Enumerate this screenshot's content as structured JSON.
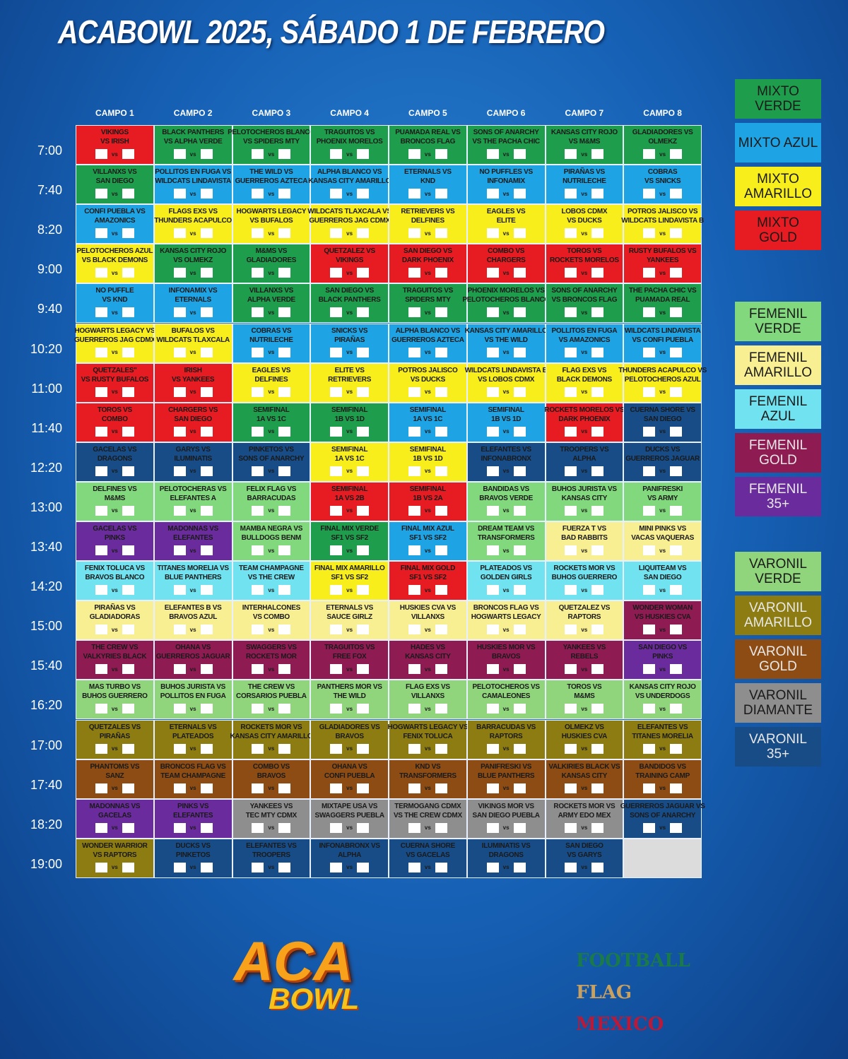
{
  "title": "ACABOWL 2025, SÁBADO 1 DE FEBRERO",
  "vs_label": "vs",
  "columns": [
    "CAMPO 1",
    "CAMPO 2",
    "CAMPO 3",
    "CAMPO 4",
    "CAMPO 5",
    "CAMPO 6",
    "CAMPO 7",
    "CAMPO 8"
  ],
  "legend": [
    {
      "label": "MIXTO VERDE",
      "color": "#1e9e4c"
    },
    {
      "label": "MIXTO AZUL",
      "color": "#1ea4e4"
    },
    {
      "label": "MIXTO AMARILLO",
      "color": "#f8ee1c"
    },
    {
      "label": "MIXTO GOLD",
      "color": "#e61c22"
    },
    {
      "label": "FEMENIL VERDE",
      "color": "#82d87c"
    },
    {
      "label": "FEMENIL AMARILLO",
      "color": "#f8ee92"
    },
    {
      "label": "FEMENIL AZUL",
      "color": "#70e2f0"
    },
    {
      "label": "FEMENIL GOLD",
      "color": "#8e1c52"
    },
    {
      "label": "FEMENIL 35+",
      "color": "#6a2c9c"
    },
    {
      "label": "VARONIL VERDE",
      "color": "#90d47c"
    },
    {
      "label": "VARONIL AMARILLO",
      "color": "#8c7c12"
    },
    {
      "label": "VARONIL GOLD",
      "color": "#8c4c14"
    },
    {
      "label": "VARONIL DIAMANTE",
      "color": "#8e8e8e"
    },
    {
      "label": "VARONIL 35+",
      "color": "#184c86"
    }
  ],
  "rows": [
    {
      "time": "7:00",
      "cells": [
        [
          "VIKINGS",
          "VS IRISH",
          3
        ],
        [
          "BLACK PANTHERS",
          "VS ALPHA VERDE",
          0
        ],
        [
          "PELOTOCHEROS BLANCO",
          "VS SPIDERS MTY",
          0
        ],
        [
          "TRAGUITOS VS",
          "PHOENIX MORELOS",
          0
        ],
        [
          "PUAMADA REAL VS",
          "BRONCOS FLAG",
          0
        ],
        [
          "SONS OF ANARCHY",
          "VS THE PACHA CHIC",
          0
        ],
        [
          "KANSAS CITY ROJO",
          "VS M&MS",
          0
        ],
        [
          "GLADIADORES VS",
          "OLMEKZ",
          0
        ]
      ]
    },
    {
      "time": "7:40",
      "cells": [
        [
          "VILLANXS VS",
          "SAN DIEGO",
          0
        ],
        [
          "POLLITOS EN FUGA VS",
          "WILDCATS LINDAVISTA",
          1
        ],
        [
          "THE WILD VS",
          "GUERREROS AZTECA",
          1
        ],
        [
          "ALPHA BLANCO VS",
          "KANSAS CITY AMARILLO",
          1
        ],
        [
          "ETERNALS VS",
          "KND",
          1
        ],
        [
          "NO PUFFLES VS",
          "INFONAMIX",
          1
        ],
        [
          "PIRAÑAS VS",
          "NUTRILECHE",
          1
        ],
        [
          "COBRAS",
          "VS SNICKS",
          1
        ]
      ]
    },
    {
      "time": "8:20",
      "cells": [
        [
          "CONFI PUEBLA VS",
          "AMAZONICS",
          1
        ],
        [
          "FLAGS EXS VS",
          "THUNDERS ACAPULCO",
          2
        ],
        [
          "HOGWARTS LEGACY",
          "VS BUFALOS",
          2
        ],
        [
          "WILDCATS TLAXCALA VS",
          "GUERREROS JAG CDMX",
          2
        ],
        [
          "RETRIEVERS VS",
          "DELFINES",
          2
        ],
        [
          "EAGLES VS",
          "ELITE",
          2
        ],
        [
          "LOBOS CDMX",
          "VS DUCKS",
          2
        ],
        [
          "POTROS JALISCO VS",
          "WILDCATS LINDAVISTA B",
          2
        ]
      ]
    },
    {
      "time": "9:00",
      "cells": [
        [
          "PELOTOCHEROS AZUL",
          "VS BLACK DEMONS",
          2
        ],
        [
          "KANSAS CITY ROJO",
          "VS OLMEKZ",
          0
        ],
        [
          "M&MS VS",
          "GLADIADORES",
          0
        ],
        [
          "QUETZALEZ VS",
          "VIKINGS",
          3
        ],
        [
          "SAN DIEGO VS",
          "DARK PHOENIX",
          3
        ],
        [
          "COMBO VS",
          "CHARGERS",
          3
        ],
        [
          "TOROS VS",
          "ROCKETS MORELOS",
          3
        ],
        [
          "RUSTY BUFALOS VS",
          "YANKEES",
          3
        ]
      ]
    },
    {
      "time": "9:40",
      "cells": [
        [
          "NO PUFFLE",
          "VS KND",
          1
        ],
        [
          "INFONAMIX VS",
          "ETERNALS",
          1
        ],
        [
          "VILLANXS VS",
          "ALPHA VERDE",
          0
        ],
        [
          "SAN DIEGO VS",
          "BLACK PANTHERS",
          0
        ],
        [
          "TRAGUITOS VS",
          "SPIDERS MTY",
          0
        ],
        [
          "PHOENIX MORELOS VS",
          "PELOTOCHEROS BLANCO",
          0
        ],
        [
          "SONS OF ANARCHY",
          "VS BRONCOS FLAG",
          0
        ],
        [
          "THE PACHA CHIC VS",
          "PUAMADA REAL",
          0
        ]
      ]
    },
    {
      "time": "10:20",
      "cells": [
        [
          "HOGWARTS LEGACY VS",
          "GUERREROS JAG CDMX",
          2
        ],
        [
          "BUFALOS VS",
          "WILDCATS TLAXCALA",
          2
        ],
        [
          "COBRAS VS",
          "NUTRILECHE",
          1
        ],
        [
          "SNICKS VS",
          "PIRAÑAS",
          1
        ],
        [
          "ALPHA BLANCO VS",
          "GUERREROS AZTECA",
          1
        ],
        [
          "KANSAS CITY AMARILLO",
          "VS THE WILD",
          1
        ],
        [
          "POLLITOS EN FUGA",
          "VS AMAZONICS",
          1
        ],
        [
          "WILDCATS LINDAVISTA",
          "VS CONFI PUEBLA",
          1
        ]
      ]
    },
    {
      "time": "11:00",
      "cells": [
        [
          "QUETZALES''",
          "VS RUSTY BUFALOS",
          3
        ],
        [
          "IRISH",
          "VS YANKEES",
          3
        ],
        [
          "EAGLES VS",
          "DELFINES",
          2
        ],
        [
          "ELITE VS",
          "RETRIEVERS",
          2
        ],
        [
          "POTROS JALISCO",
          "VS DUCKS",
          2
        ],
        [
          "WILDCATS LINDAVISTA B",
          "VS LOBOS CDMX",
          2
        ],
        [
          "FLAG EXS VS",
          "BLACK DEMONS",
          2
        ],
        [
          "THUNDERS ACAPULCO VS",
          "PELOTOCHEROS AZUL",
          2
        ]
      ]
    },
    {
      "time": "11:40",
      "cells": [
        [
          "TOROS VS",
          "COMBO",
          3
        ],
        [
          "CHARGERS VS",
          "SAN DIEGO",
          3
        ],
        [
          "SEMIFINAL",
          "1A VS 1C",
          0
        ],
        [
          "SEMIFINAL",
          "1B VS 1D",
          0
        ],
        [
          "SEMIFINAL",
          "1A VS 1C",
          1
        ],
        [
          "SEMIFINAL",
          "1B VS 1D",
          1
        ],
        [
          "ROCKETS MORELOS VS",
          "DARK PHOENIX",
          3
        ],
        [
          "CUERNA SHORE VS",
          "SAN DIEGO",
          13
        ]
      ]
    },
    {
      "time": "12:20",
      "cells": [
        [
          "GACELAS VS",
          "DRAGONS",
          13
        ],
        [
          "GARYS VS",
          "ILUMINATIS",
          13
        ],
        [
          "PINKETOS VS",
          "SONS OF ANARCHY",
          13
        ],
        [
          "SEMIFINAL",
          "1A VS 1C",
          2
        ],
        [
          "SEMIFINAL",
          "1B VS 1D",
          2
        ],
        [
          "ELEFANTES VS",
          "INFONABRONX",
          13
        ],
        [
          "TROOPERS VS",
          "ALPHA",
          13
        ],
        [
          "DUCKS VS",
          "GUERREROS JAGUAR",
          13
        ]
      ]
    },
    {
      "time": "13:00",
      "cells": [
        [
          "DELFINES VS",
          "M&MS",
          4
        ],
        [
          "PELOTOCHERAS VS",
          "ELEFANTES A",
          4
        ],
        [
          "FELIX FLAG VS",
          "BARRACUDAS",
          4
        ],
        [
          "SEMIFINAL",
          "1A VS 2B",
          3
        ],
        [
          "SEMIFINAL",
          "1B VS 2A",
          3
        ],
        [
          "BANDIDAS VS",
          "BRAVOS VERDE",
          4
        ],
        [
          "BUHOS JURISTA VS",
          "KANSAS CITY",
          4
        ],
        [
          "PANIFRESKI",
          "VS ARMY",
          4
        ]
      ]
    },
    {
      "time": "13:40",
      "cells": [
        [
          "GACELAS VS",
          "PINKS",
          8
        ],
        [
          "MADONNAS VS",
          "ELEFANTES",
          8
        ],
        [
          "MAMBA NEGRA VS",
          "BULLDOGS BENM",
          4
        ],
        [
          "FINAL MIX VERDE",
          "SF1 VS SF2",
          0
        ],
        [
          "FINAL MIX AZUL",
          "SF1 VS SF2",
          1
        ],
        [
          "DREAM TEAM VS",
          "TRANSFORMERS",
          4
        ],
        [
          "FUERZA T VS",
          "BAD RABBITS",
          5
        ],
        [
          "MINI PINKS VS",
          "VACAS VAQUERAS",
          5
        ]
      ]
    },
    {
      "time": "14:20",
      "cells": [
        [
          "FENIX TOLUCA VS",
          "BRAVOS BLANCO",
          6
        ],
        [
          "TITANES MORELIA VS",
          "BLUE PANTHERS",
          6
        ],
        [
          "TEAM CHAMPAGNE",
          "VS THE CREW",
          6
        ],
        [
          "FINAL MIX AMARILLO",
          "SF1 VS SF2",
          2
        ],
        [
          "FINAL MIX GOLD",
          "SF1 VS SF2",
          3
        ],
        [
          "PLATEADOS VS",
          "GOLDEN GIRLS",
          6
        ],
        [
          "ROCKETS MOR VS",
          "BUHOS GUERRERO",
          6
        ],
        [
          "LIQUITEAM VS",
          "SAN DIEGO",
          6
        ]
      ]
    },
    {
      "time": "15:00",
      "cells": [
        [
          "PIRAÑAS VS",
          "GLADIADORAS",
          5
        ],
        [
          "ELEFANTES B VS",
          "BRAVOS AZUL",
          5
        ],
        [
          "INTERHALCONES",
          "VS COMBO",
          5
        ],
        [
          "ETERNALS VS",
          "SAUCE GIRLZ",
          5
        ],
        [
          "HUSKIES CVA VS",
          "VILLANXS",
          5
        ],
        [
          "BRONCOS FLAG VS",
          "HOGWARTS LEGACY",
          5
        ],
        [
          "QUETZALEZ VS",
          "RAPTORS",
          5
        ],
        [
          "WONDER WOMAN",
          "VS HUSKIES CVA",
          7
        ]
      ]
    },
    {
      "time": "15:40",
      "cells": [
        [
          "THE CREW VS",
          "VALKYRIES BLACK",
          7
        ],
        [
          "OHANA VS",
          "GUERREROS JAGUAR",
          7
        ],
        [
          "SWAGGERS VS",
          "ROCKETS MOR",
          7
        ],
        [
          "TRAGUITOS VS",
          "FREE FOX",
          7
        ],
        [
          "HADES VS",
          "KANSAS CITY",
          7
        ],
        [
          "HUSKIES MOR VS",
          "BRAVOS",
          7
        ],
        [
          "YANKEES VS",
          "REBELS",
          7
        ],
        [
          "SAN DIEGO VS",
          "PINKS",
          8
        ]
      ]
    },
    {
      "time": "16:20",
      "cells": [
        [
          "MAS TURBO VS",
          "BUHOS GUERRERO",
          9
        ],
        [
          "BUHOS JURISTA VS",
          "POLLITOS EN FUGA",
          9
        ],
        [
          "THE CREW VS",
          "CORSARIOS PUEBLA",
          9
        ],
        [
          "PANTHERS MOR VS",
          "THE WILD",
          9
        ],
        [
          "FLAG EXS VS",
          "VILLANXS",
          9
        ],
        [
          "PELOTOCHEROS VS",
          "CAMALEONES",
          9
        ],
        [
          "TOROS VS",
          "M&MS",
          9
        ],
        [
          "KANSAS CITY ROJO",
          "VS UNDERDOGS",
          9
        ]
      ]
    },
    {
      "time": "17:00",
      "cells": [
        [
          "QUETZALES VS",
          "PIRAÑAS",
          10
        ],
        [
          "ETERNALS VS",
          "PLATEADOS",
          10
        ],
        [
          "ROCKETS MOR VS",
          "KANSAS CITY AMARILLO",
          10
        ],
        [
          "GLADIADORES VS",
          "BRAVOS",
          10
        ],
        [
          "HOGWARTS LEGACY VS",
          "FENIX TOLUCA",
          10
        ],
        [
          "BARRACUDAS VS",
          "RAPTORS",
          10
        ],
        [
          "OLMEKZ VS",
          "HUSKIES CVA",
          10
        ],
        [
          "ELEFANTES VS",
          "TITANES MORELIA",
          10
        ]
      ]
    },
    {
      "time": "17:40",
      "cells": [
        [
          "PHANTOMS VS",
          "SANZ",
          11
        ],
        [
          "BRONCOS FLAG VS",
          "TEAM CHAMPAGNE",
          11
        ],
        [
          "COMBO VS",
          "BRAVOS",
          11
        ],
        [
          "OHANA VS",
          "CONFI PUEBLA",
          11
        ],
        [
          "KND VS",
          "TRANSFORMERS",
          11
        ],
        [
          "PANIFRESKI VS",
          "BLUE PANTHERS",
          11
        ],
        [
          "VALKIRIES BLACK VS",
          "KANSAS CITY",
          11
        ],
        [
          "BANDIDOS VS",
          "TRAINING CAMP",
          11
        ]
      ]
    },
    {
      "time": "18:20",
      "cells": [
        [
          "MADONNAS VS",
          "GACELAS",
          8
        ],
        [
          "PINKS VS",
          "ELEFANTES",
          8
        ],
        [
          "YANKEES VS",
          "TEC MTY CDMX",
          12
        ],
        [
          "MIXTAPE USA VS",
          "SWAGGERS PUEBLA",
          12
        ],
        [
          "TERMOGANG CDMX",
          "VS THE CREW CDMX",
          12
        ],
        [
          "VIKINGS MOR VS",
          "SAN DIEGO PUEBLA",
          12
        ],
        [
          "ROCKETS MOR VS",
          "ARMY EDO MEX",
          12
        ],
        [
          "GUERREROS JAGUAR VS",
          "SONS OF ANARCHY",
          13
        ]
      ]
    },
    {
      "time": "19:00",
      "cells": [
        [
          "WONDER WARRIOR",
          "VS RAPTORS",
          10
        ],
        [
          "DUCKS VS",
          "PINKETOS",
          13
        ],
        [
          "ELEFANTES VS",
          "TROOPERS",
          13
        ],
        [
          "INFONABRONX VS",
          "ALPHA",
          13
        ],
        [
          "CUERNA SHORE",
          "VS GACELAS",
          13
        ],
        [
          "ILUMINATIS VS",
          "DRAGONS",
          13
        ],
        [
          "SAN DIEGO",
          "VS GARYS",
          13
        ],
        null
      ]
    }
  ],
  "logos": {
    "aca": "ACA",
    "bowl": "BOWL",
    "football": "FOOTBALL",
    "flag": "FLAG",
    "mexico": "MEXICO"
  }
}
